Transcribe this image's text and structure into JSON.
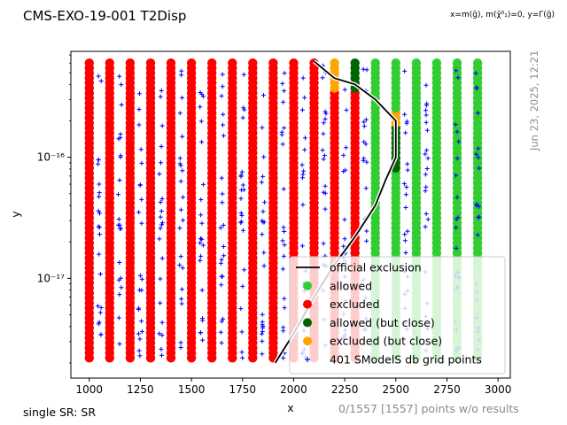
{
  "header": {
    "title": "CMS-EXO-19-001 T2Disp",
    "top_note": "x=m(g̃), m(χ̃⁰₁)=0, y=Γ(g̃)",
    "side_note": "Jun 23, 2025, 12:21",
    "bottom_left": "single SR: SR",
    "bottom_right": "0/1557 [1557] points w/o results"
  },
  "colors": {
    "allowed": "#32cd32",
    "excluded": "#ff0000",
    "allowed_close": "#006400",
    "excluded_close": "#ffa500",
    "grid_points": "#0000ff",
    "exclusion_line": "#000000"
  },
  "chart_data": {
    "type": "scatter",
    "xlabel": "x",
    "ylabel": "y",
    "xlim": [
      910,
      3060
    ],
    "ylim": [
      1.5e-18,
      7.5e-16
    ],
    "yscale": "log",
    "x_ticks": [
      1000,
      1250,
      1500,
      1750,
      2000,
      2250,
      2500,
      2750,
      3000
    ],
    "y_ticks": [
      {
        "value": 1e-16,
        "label": "10⁻¹⁶"
      },
      {
        "value": 1e-17,
        "label": "10⁻¹⁷"
      }
    ],
    "y_range_of_points": [
      2.2e-18,
      6e-16
    ],
    "columns": [
      {
        "x": 1000,
        "status": "excluded"
      },
      {
        "x": 1100,
        "status": "excluded"
      },
      {
        "x": 1200,
        "status": "excluded"
      },
      {
        "x": 1300,
        "status": "excluded"
      },
      {
        "x": 1400,
        "status": "excluded"
      },
      {
        "x": 1500,
        "status": "excluded"
      },
      {
        "x": 1600,
        "status": "excluded"
      },
      {
        "x": 1700,
        "status": "excluded"
      },
      {
        "x": 1800,
        "status": "excluded"
      },
      {
        "x": 1900,
        "status": "excluded"
      },
      {
        "x": 2000,
        "status": "excluded"
      },
      {
        "x": 2100,
        "status": "excluded"
      },
      {
        "x": 2200,
        "status": "excluded",
        "top_close": "excluded_close"
      },
      {
        "x": 2300,
        "status": "excluded",
        "top_close": "allowed_close"
      },
      {
        "x": 2400,
        "status": "allowed"
      },
      {
        "x": 2500,
        "status": "allowed",
        "band": [
          8e-17,
          2.5e-16
        ]
      },
      {
        "x": 2600,
        "status": "allowed"
      },
      {
        "x": 2700,
        "status": "allowed"
      },
      {
        "x": 2800,
        "status": "allowed"
      },
      {
        "x": 2900,
        "status": "allowed"
      }
    ],
    "db_grid_columns": [
      1050,
      1150,
      1250,
      1350,
      1450,
      1550,
      1650,
      1750,
      1850,
      1950,
      2050,
      2150,
      2250,
      2350,
      2550,
      2650,
      2800,
      2900
    ],
    "exclusion_line": {
      "x": [
        1910,
        2000,
        2100,
        2200,
        2300,
        2400,
        2450,
        2500,
        2500,
        2400,
        2300,
        2200,
        2100
      ],
      "y": [
        2e-18,
        3.5e-18,
        7e-18,
        1.3e-17,
        2.2e-17,
        4e-17,
        6.5e-17,
        1e-16,
        2e-16,
        3e-16,
        4e-16,
        4.5e-16,
        6.2e-16
      ]
    },
    "legend": {
      "position": "lower right",
      "entries": [
        {
          "label": "official exclusion",
          "kind": "line",
          "color_key": "exclusion_line"
        },
        {
          "label": "allowed",
          "kind": "dot",
          "color_key": "allowed"
        },
        {
          "label": "excluded",
          "kind": "dot",
          "color_key": "excluded"
        },
        {
          "label": "allowed (but close)",
          "kind": "dot",
          "color_key": "allowed_close"
        },
        {
          "label": "excluded (but close)",
          "kind": "dot",
          "color_key": "excluded_close"
        },
        {
          "label": "401 SModelS db grid points",
          "kind": "plus",
          "color_key": "grid_points"
        }
      ]
    }
  }
}
